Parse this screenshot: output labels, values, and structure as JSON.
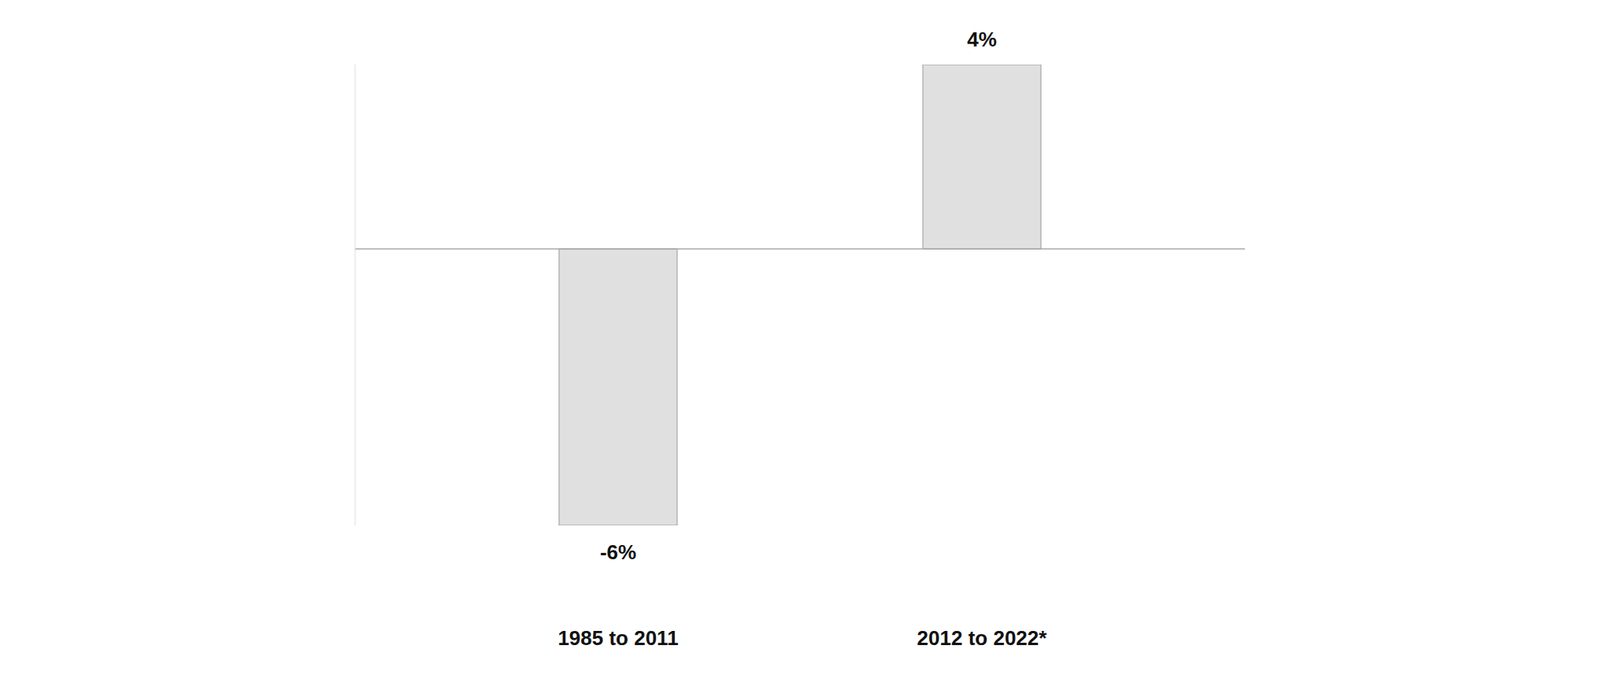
{
  "chart_data": {
    "type": "bar",
    "categories": [
      "1985 to 2011",
      "2012 to 2022*"
    ],
    "values": [
      -6,
      4
    ],
    "value_labels": [
      "-6%",
      "4%"
    ],
    "color": "#e0e0e0",
    "ylim": [
      -6,
      4
    ],
    "tick_labels": "x",
    "data_labels": true,
    "grid": false
  }
}
